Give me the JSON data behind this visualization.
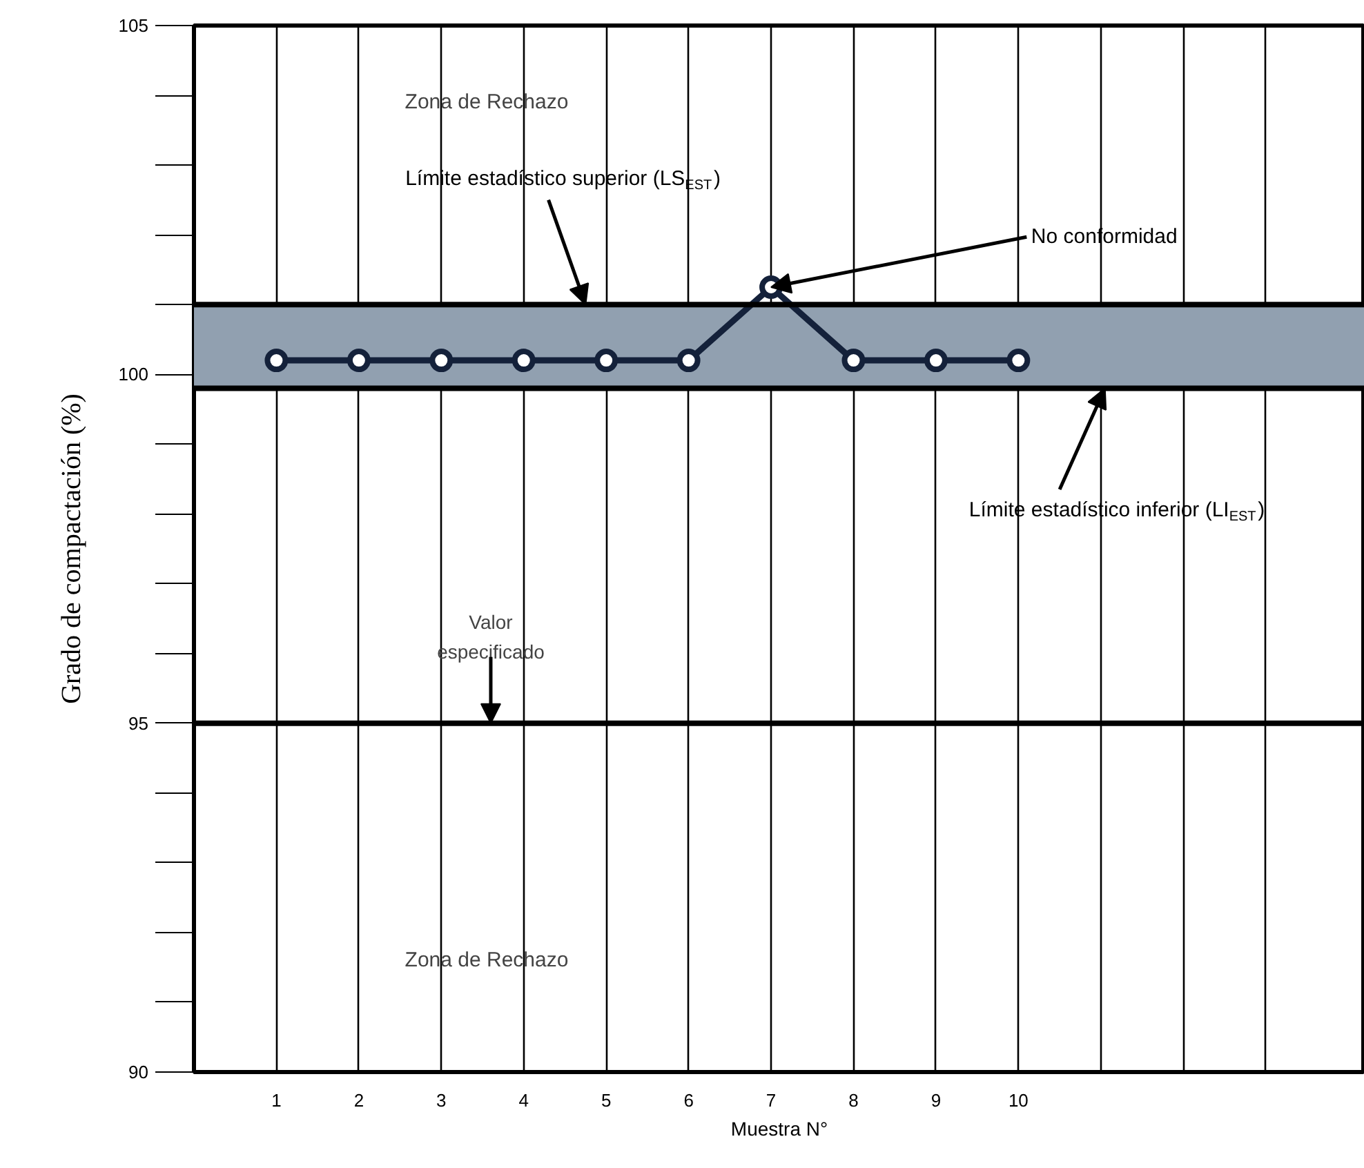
{
  "chart_data": {
    "type": "line",
    "xlabel": "Muestra N°",
    "ylabel": "Grado de compactación (%)",
    "x": [
      1,
      2,
      3,
      4,
      5,
      6,
      7,
      8,
      9,
      10
    ],
    "series": [
      {
        "color": "#14213a",
        "values": [
          100.2,
          100.2,
          100.2,
          100.2,
          100.2,
          100.2,
          101.25,
          100.2,
          100.2,
          100.2
        ]
      }
    ],
    "marker": "circle",
    "line_style": "solid",
    "grid": "x",
    "xlim": [
      0,
      14.2
    ],
    "xticks": [
      1,
      2,
      3,
      4,
      5,
      6,
      7,
      8,
      9,
      10,
      {
        "value": 11,
        "label": null
      },
      {
        "value": 12,
        "label": null
      },
      {
        "value": 13,
        "label": null
      }
    ],
    "ylim": [
      90,
      105
    ],
    "yticks": [
      90,
      95,
      100,
      105
    ],
    "bands": [
      {
        "axis": "y",
        "from": 99.8,
        "to": 101,
        "color": "#91a0b0"
      }
    ],
    "ref_lines": [
      {
        "axis": "y",
        "value": 101,
        "label": "Límite estadístico superior (LS$_{EST}$)",
        "color": "#000000"
      },
      {
        "axis": "y",
        "value": 99.8,
        "label": "Límite estadístico inferior (LI$_{EST}$)",
        "color": "#000000"
      },
      {
        "axis": "y",
        "value": 95,
        "label": "Valor especificado",
        "color": "#000000"
      }
    ],
    "annotations": [
      "Zona de Rechazo",
      "Zona de Rechazo",
      {
        "text": "No conformidad",
        "x": 7,
        "y": 101.25
      }
    ]
  }
}
